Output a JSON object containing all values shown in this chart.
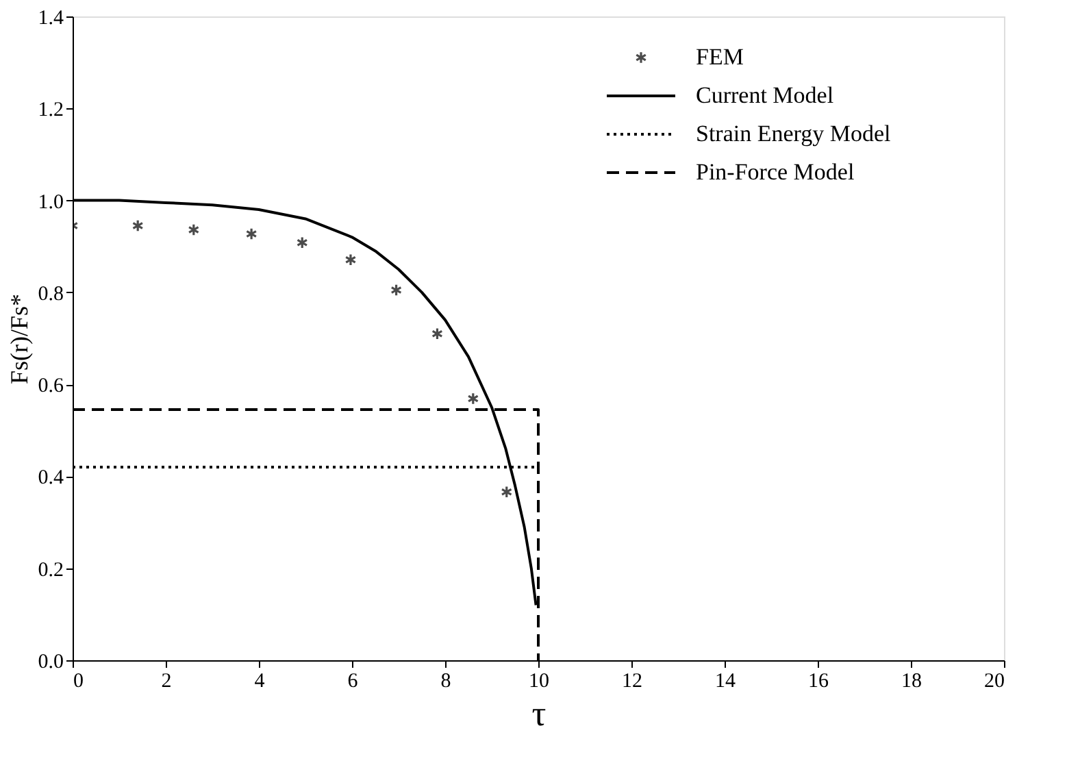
{
  "chart_data": {
    "type": "line",
    "xlabel": "τ",
    "ylabel": "Fs(r)/Fs*",
    "xlim": [
      0,
      20
    ],
    "ylim": [
      0,
      1.4
    ],
    "xticks": [
      0,
      2,
      4,
      6,
      8,
      10,
      12,
      14,
      16,
      18,
      20
    ],
    "yticks": [
      {
        "value": 0,
        "label": "0.0"
      },
      {
        "value": 0.2,
        "label": "0.2"
      },
      {
        "value": 0.4,
        "label": "0.4"
      },
      {
        "value": 0.6,
        "label": "0.6"
      },
      {
        "value": 0.8,
        "label": "0.8"
      },
      {
        "value": 1.0,
        "label": "1.0"
      },
      {
        "value": 1.2,
        "label": "1.2"
      },
      {
        "value": 1.4,
        "label": "1.4"
      }
    ],
    "grid": false,
    "legend": "top right",
    "series": [
      {
        "name": "FEM",
        "type": "scatter",
        "marker": "cross",
        "color": "#000000",
        "x": [
          0,
          1.4,
          2.6,
          3.84,
          4.93,
          5.97,
          6.95,
          7.83,
          8.6,
          9.32
        ],
        "values": [
          0.945,
          0.945,
          0.936,
          0.927,
          0.908,
          0.871,
          0.805,
          0.71,
          0.569,
          0.366
        ]
      },
      {
        "name": "Current Model",
        "line_style": "solid",
        "color": "#000000",
        "x": [
          0,
          1,
          2,
          3,
          4,
          5,
          6,
          6.5,
          7,
          7.5,
          8,
          8.5,
          9,
          9.3,
          9.5,
          9.7,
          9.85,
          9.95
        ],
        "values": [
          1.0,
          1.0,
          0.995,
          0.99,
          0.98,
          0.96,
          0.92,
          0.89,
          0.85,
          0.8,
          0.74,
          0.66,
          0.55,
          0.46,
          0.38,
          0.29,
          0.2,
          0.12
        ]
      },
      {
        "name": "Strain Energy Model",
        "line_style": "dotted",
        "color": "#000000",
        "x": [
          0,
          10
        ],
        "values": [
          0.42,
          0.42
        ]
      },
      {
        "name": "Pin-Force Model",
        "line_style": "dashed",
        "color": "#000000",
        "x": [
          0,
          10,
          10
        ],
        "values": [
          0.545,
          0.545,
          0
        ]
      }
    ]
  }
}
